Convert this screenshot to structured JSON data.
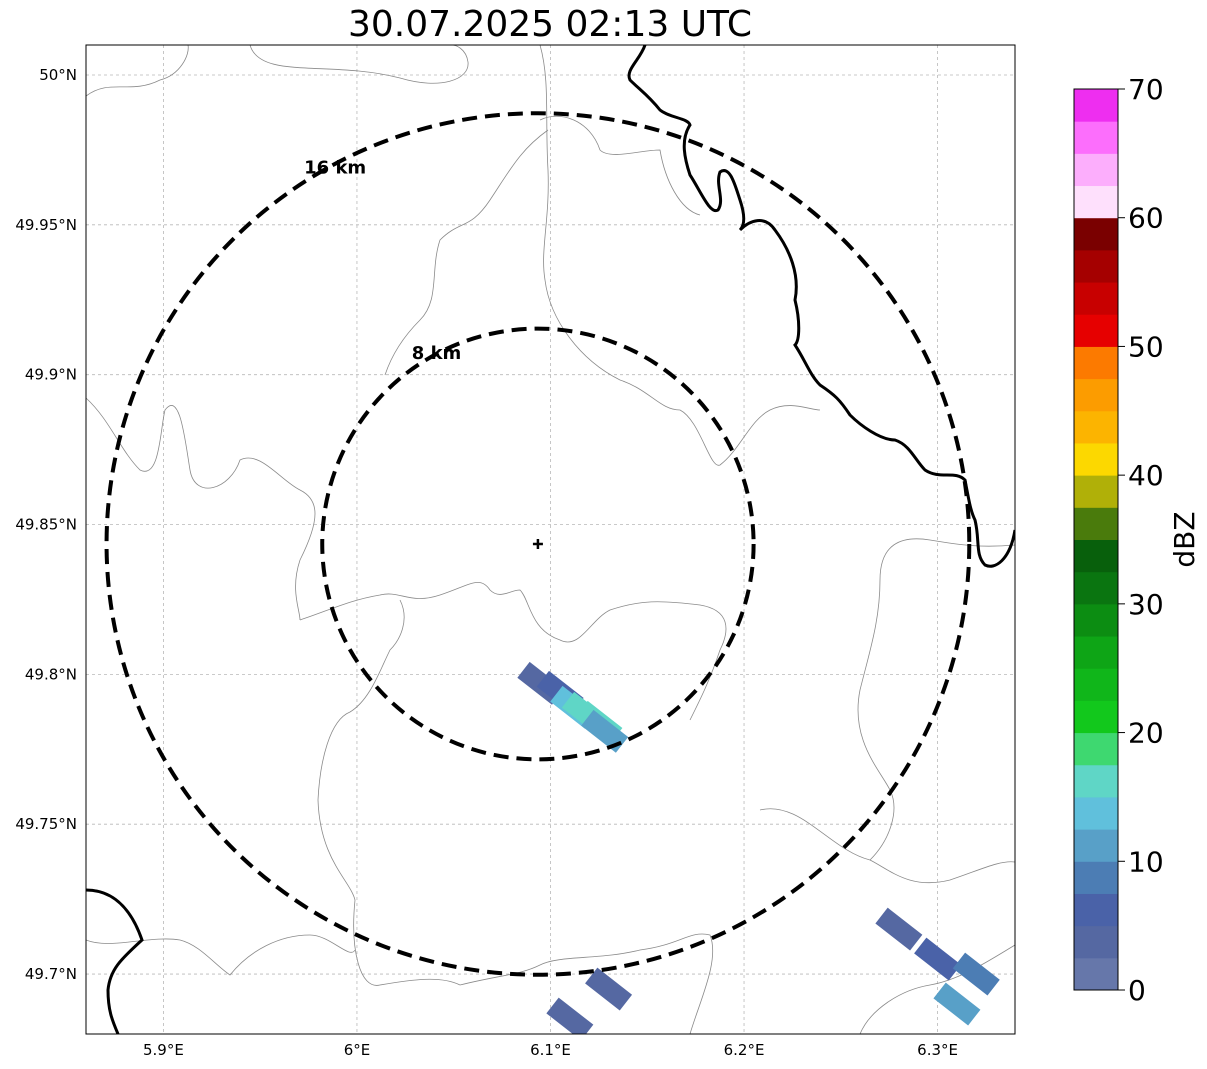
{
  "title": "30.07.2025 02:13 UTC",
  "map": {
    "lon_min": 5.86,
    "lon_max": 6.34,
    "lat_min": 49.68,
    "lat_max": 50.01,
    "x_ticks": [
      {
        "value": 5.9,
        "label": "5.9°E"
      },
      {
        "value": 6.0,
        "label": "6°E"
      },
      {
        "value": 6.1,
        "label": "6.1°E"
      },
      {
        "value": 6.2,
        "label": "6.2°E"
      },
      {
        "value": 6.3,
        "label": "6.3°E"
      }
    ],
    "y_ticks": [
      {
        "value": 50.0,
        "label": "50°N"
      },
      {
        "value": 49.95,
        "label": "49.95°N"
      },
      {
        "value": 49.9,
        "label": "49.9°N"
      },
      {
        "value": 49.85,
        "label": "49.85°N"
      },
      {
        "value": 49.8,
        "label": "49.8°N"
      },
      {
        "value": 49.75,
        "label": "49.75°N"
      },
      {
        "value": 49.7,
        "label": "49.7°N"
      }
    ],
    "gridlines": true,
    "radar_site": {
      "lon": 6.0935,
      "lat": 49.8435
    },
    "range_rings": [
      {
        "radius_km": 8,
        "label": "8 km"
      },
      {
        "radius_km": 16,
        "label": "16 km"
      }
    ]
  },
  "colorbar": {
    "label": "dBZ",
    "min": 0,
    "max": 70,
    "step": 2.5,
    "tick_values": [
      0,
      10,
      20,
      30,
      40,
      50,
      60,
      70
    ],
    "tick_labels": [
      "0",
      "10",
      "20",
      "30",
      "40",
      "50",
      "60",
      "70"
    ],
    "colors": [
      "#6677aa",
      "#5568a2",
      "#4a62a8",
      "#4c7db4",
      "#58a0c8",
      "#60c0dc",
      "#5fd6c6",
      "#3ed870",
      "#12c81c",
      "#10b61a",
      "#0ea516",
      "#0c8d12",
      "#0a7510",
      "#08600c",
      "#4a7b0c",
      "#b0b008",
      "#fcd800",
      "#fcb400",
      "#fc9c00",
      "#fc7a00",
      "#e60000",
      "#c80000",
      "#a50000",
      "#7a0000",
      "#fee0fc",
      "#fcaefc",
      "#fc6efc",
      "#ee2ef0"
    ]
  },
  "precipitation": [
    {
      "lon": 6.095,
      "lat": 49.797,
      "dbz": 3
    },
    {
      "lon": 6.105,
      "lat": 49.794,
      "dbz": 6
    },
    {
      "lon": 6.112,
      "lat": 49.789,
      "dbz": 13
    },
    {
      "lon": 6.118,
      "lat": 49.787,
      "dbz": 17
    },
    {
      "lon": 6.125,
      "lat": 49.784,
      "dbz": 16
    },
    {
      "lon": 6.128,
      "lat": 49.781,
      "dbz": 12
    },
    {
      "lon": 6.13,
      "lat": 49.695,
      "dbz": 3
    },
    {
      "lon": 6.11,
      "lat": 49.685,
      "dbz": 4
    },
    {
      "lon": 6.28,
      "lat": 49.715,
      "dbz": 4
    },
    {
      "lon": 6.3,
      "lat": 49.705,
      "dbz": 6
    },
    {
      "lon": 6.32,
      "lat": 49.7,
      "dbz": 8
    },
    {
      "lon": 6.31,
      "lat": 49.69,
      "dbz": 11
    }
  ]
}
